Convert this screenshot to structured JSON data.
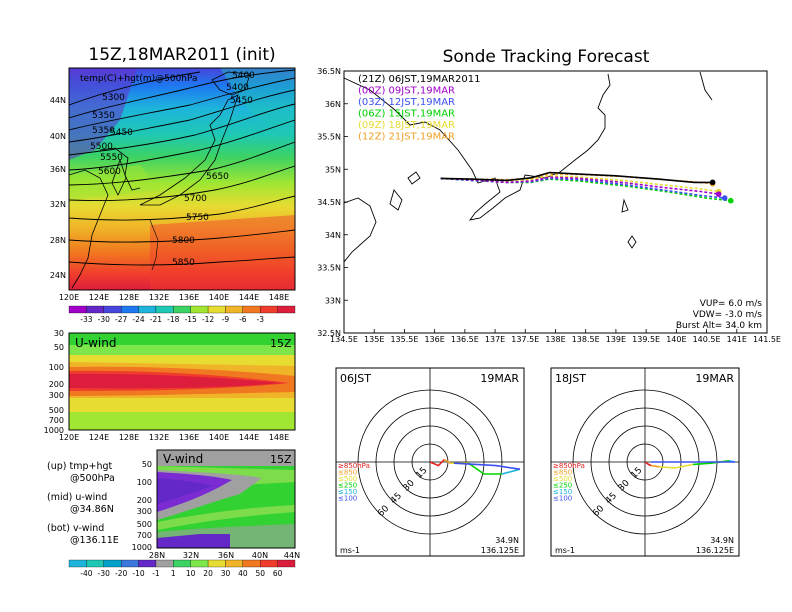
{
  "header": {
    "left_title": "15Z,18MAR2011 (init)",
    "right_title": "Sonde Tracking Forecast"
  },
  "top_map": {
    "label": "temp(C)+hgt(m)@500hPa",
    "lat_ticks": [
      "44N",
      "40N",
      "36N",
      "32N",
      "28N",
      "24N"
    ],
    "lon_ticks": [
      "120E",
      "124E",
      "128E",
      "132E",
      "136E",
      "140E",
      "144E",
      "148E"
    ],
    "contour_labels": [
      "5300",
      "5350",
      "5400",
      "5450",
      "5500",
      "5550",
      "5600",
      "5650",
      "5700",
      "5750",
      "5800",
      "5850",
      "5350",
      "5400",
      "5450"
    ],
    "colorbar_labels": [
      "-33",
      "-30",
      "-27",
      "-24",
      "-21",
      "-18",
      "-15",
      "-12",
      "-9",
      "-6",
      "-3"
    ]
  },
  "u_panel": {
    "label": "U-wind",
    "time": "15Z",
    "p_ticks": [
      "30",
      "50",
      "100",
      "200",
      "300",
      "500",
      "700",
      "1000"
    ],
    "lon_ticks": [
      "120E",
      "124E",
      "128E",
      "132E",
      "136E",
      "140E",
      "144E",
      "148E"
    ]
  },
  "v_panel": {
    "label": "V-wind",
    "time": "15Z",
    "p_ticks": [
      "50",
      "100",
      "200",
      "300",
      "500",
      "700",
      "1000"
    ],
    "lat_ticks": [
      "28N",
      "32N",
      "36N",
      "40N",
      "44N"
    ],
    "colorbar_labels": [
      "-40",
      "-30",
      "-20",
      "-10",
      "-1",
      "1",
      "10",
      "20",
      "30",
      "40",
      "50",
      "60"
    ]
  },
  "notes": {
    "up1": "(up) tmp+hgt",
    "up2": "@500hPa",
    "mid1": "(mid) u-wind",
    "mid2": "@34.86N",
    "bot1": "(bot) v-wind",
    "bot2": "@136.11E"
  },
  "track_map": {
    "lat_ticks": [
      "36.5N",
      "36N",
      "35.5N",
      "35N",
      "34.5N",
      "34N",
      "33.5N",
      "33N",
      "32.5N"
    ],
    "lon_ticks": [
      "134.5E",
      "135E",
      "135.5E",
      "136E",
      "136.5E",
      "137E",
      "137.5E",
      "138E",
      "138.5E",
      "139E",
      "139.5E",
      "140E",
      "140.5E",
      "141E",
      "141.5E"
    ],
    "legend": [
      {
        "run": "(21Z)",
        "label": "06JST,19MAR2011",
        "color": "#000000"
      },
      {
        "run": "(00Z)",
        "label": "09JST,19MAR",
        "color": "#a000c8"
      },
      {
        "run": "(03Z)",
        "label": "12JST,19MAR",
        "color": "#3c50f0"
      },
      {
        "run": "(06Z)",
        "label": "15JST,19MAR",
        "color": "#00d200"
      },
      {
        "run": "(09Z)",
        "label": "18JST,19MAR",
        "color": "#e6dc32"
      },
      {
        "run": "(12Z)",
        "label": "21JST,19MAR",
        "color": "#f0a028"
      }
    ],
    "params": {
      "vup": "VUP= 6.0 m/s",
      "vdw": "VDW= -3.0 m/s",
      "burst": "Burst Alt= 34.0 km"
    }
  },
  "chart_data": [
    {
      "type": "line",
      "title": "Sonde Tracking Forecast",
      "xlim": [
        134.5,
        141.5
      ],
      "ylim": [
        32.5,
        36.5
      ],
      "series": [
        {
          "name": "(21Z) 06JST,19MAR2011",
          "color": "#000000",
          "x": [
            136.1,
            136.6,
            137.2,
            137.6,
            137.9,
            138.3,
            139.0,
            139.7,
            140.3,
            140.6
          ],
          "y": [
            34.86,
            34.85,
            34.83,
            34.87,
            34.95,
            34.93,
            34.9,
            34.85,
            34.8,
            34.8
          ]
        },
        {
          "name": "(00Z) 09JST,19MAR",
          "color": "#a000c8",
          "x": [
            136.1,
            136.6,
            137.2,
            137.6,
            137.9,
            138.4,
            139.1,
            139.8,
            140.4,
            140.7
          ],
          "y": [
            34.86,
            34.84,
            34.8,
            34.82,
            34.88,
            34.86,
            34.8,
            34.72,
            34.66,
            34.62
          ]
        },
        {
          "name": "(03Z) 12JST,19MAR",
          "color": "#3c50f0",
          "x": [
            136.1,
            136.6,
            137.2,
            137.6,
            137.9,
            138.4,
            139.1,
            139.8,
            140.4,
            140.8
          ],
          "y": [
            34.86,
            34.83,
            34.8,
            34.81,
            34.86,
            34.84,
            34.77,
            34.68,
            34.6,
            34.56
          ]
        },
        {
          "name": "(06Z) 15JST,19MAR",
          "color": "#00d200",
          "x": [
            136.1,
            136.6,
            137.2,
            137.6,
            137.9,
            138.4,
            139.2,
            139.9,
            140.5,
            140.9
          ],
          "y": [
            34.86,
            34.83,
            34.8,
            34.8,
            34.85,
            34.82,
            34.74,
            34.65,
            34.56,
            34.52
          ]
        },
        {
          "name": "(09Z) 18JST,19MAR",
          "color": "#e6dc32",
          "x": [
            136.1,
            136.6,
            137.2,
            137.6,
            137.9,
            138.4,
            139.1,
            139.8,
            140.4,
            140.7
          ],
          "y": [
            34.86,
            34.84,
            34.82,
            34.84,
            34.9,
            34.88,
            34.83,
            34.76,
            34.7,
            34.66
          ]
        },
        {
          "name": "(12Z) 21JST,19MAR",
          "color": "#f0a028",
          "x": [
            136.1,
            136.6,
            137.2,
            137.6,
            137.9,
            138.4,
            139.1,
            139.8,
            140.4,
            140.6
          ],
          "y": [
            34.86,
            34.85,
            34.84,
            34.86,
            34.93,
            34.92,
            34.89,
            34.84,
            34.8,
            34.78
          ]
        }
      ]
    },
    {
      "type": "hodograph",
      "title": "06JST 19MAR",
      "location": [
        "34.9N",
        "136.125E"
      ],
      "units": "ms-1",
      "ring_labels": [
        "15",
        "30",
        "45",
        "60"
      ],
      "layer_legend": [
        {
          "label": "≥850hPa",
          "color": "#e61e1e"
        },
        {
          "label": "≤850",
          "color": "#f0a028"
        },
        {
          "label": "≤500",
          "color": "#e6dc32"
        },
        {
          "label": "≤250",
          "color": "#00d200"
        },
        {
          "label": "≤150",
          "color": "#1eb4dc"
        },
        {
          "label": "≤100",
          "color": "#3c50f0"
        }
      ],
      "segments": [
        {
          "color": "#e61e1e",
          "u": [
            0,
            7,
            12
          ],
          "v": [
            0,
            -3,
            2
          ]
        },
        {
          "color": "#f0a028",
          "u": [
            12,
            17
          ],
          "v": [
            2,
            -1
          ]
        },
        {
          "color": "#e6dc32",
          "u": [
            17,
            32
          ],
          "v": [
            -1,
            -1
          ]
        },
        {
          "color": "#00d200",
          "u": [
            32,
            45,
            60
          ],
          "v": [
            -1,
            -10,
            -10
          ]
        },
        {
          "color": "#1eb4dc",
          "u": [
            60,
            75
          ],
          "v": [
            -10,
            -6
          ]
        },
        {
          "color": "#3c50f0",
          "u": [
            75,
            55,
            20
          ],
          "v": [
            -6,
            -3,
            -1
          ]
        }
      ]
    },
    {
      "type": "hodograph",
      "title": "18JST 19MAR",
      "location": [
        "34.9N",
        "136.125E"
      ],
      "units": "ms-1",
      "ring_labels": [
        "15",
        "30",
        "45",
        "60"
      ],
      "layer_legend": [
        {
          "label": "≥850hPa",
          "color": "#e61e1e"
        },
        {
          "label": "≤850",
          "color": "#f0a028"
        },
        {
          "label": "≤500",
          "color": "#e6dc32"
        },
        {
          "label": "≤250",
          "color": "#00d200"
        },
        {
          "label": "≤150",
          "color": "#1eb4dc"
        },
        {
          "label": "≤100",
          "color": "#3c50f0"
        }
      ],
      "segments": [
        {
          "color": "#e61e1e",
          "u": [
            0,
            3,
            5
          ],
          "v": [
            0,
            -2,
            -3
          ]
        },
        {
          "color": "#f0a028",
          "u": [
            5,
            12
          ],
          "v": [
            -3,
            -4
          ]
        },
        {
          "color": "#e6dc32",
          "u": [
            12,
            25,
            40
          ],
          "v": [
            -4,
            -5,
            -2
          ]
        },
        {
          "color": "#00d200",
          "u": [
            40,
            55,
            70
          ],
          "v": [
            -2,
            -1,
            1
          ]
        },
        {
          "color": "#1eb4dc",
          "u": [
            70,
            75
          ],
          "v": [
            1,
            0
          ]
        },
        {
          "color": "#3c50f0",
          "u": [
            75,
            40,
            5
          ],
          "v": [
            0,
            0,
            0
          ]
        }
      ]
    }
  ],
  "hodo_left": {
    "title": "06JST",
    "date": "19MAR",
    "lat": "34.9N",
    "lon": "136.125E",
    "units": "ms-1"
  },
  "hodo_right": {
    "title": "18JST",
    "date": "19MAR",
    "lat": "34.9N",
    "lon": "136.125E",
    "units": "ms-1"
  }
}
